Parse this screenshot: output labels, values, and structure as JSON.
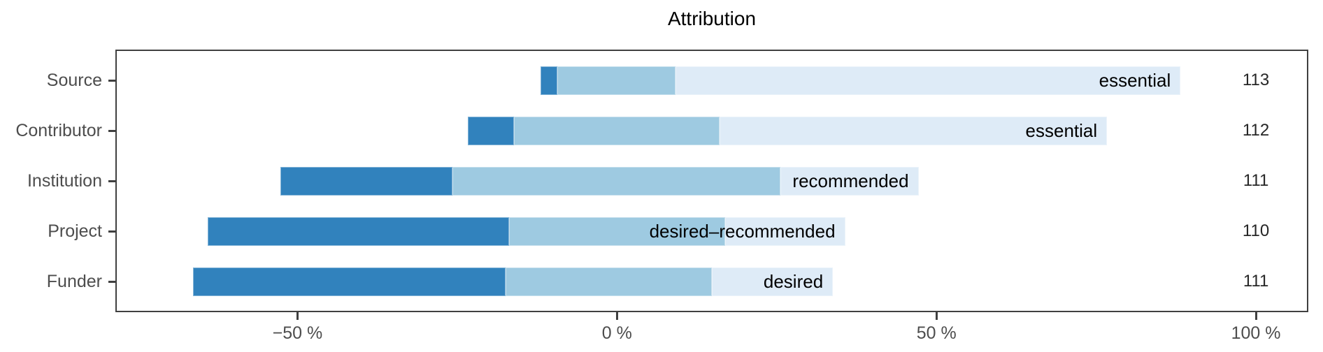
{
  "chart_data": {
    "type": "bar",
    "variant": "diverging-stacked-likert",
    "title": "Attribution",
    "x_axis": {
      "unit": "percent",
      "range": [
        -78.5,
        108.2
      ],
      "ticks": [
        {
          "value": -50,
          "label": "−50 %"
        },
        {
          "value": 0,
          "label": "0 %"
        },
        {
          "value": 50,
          "label": "50 %"
        },
        {
          "value": 100,
          "label": "100 %"
        }
      ]
    },
    "colors": {
      "low": "#3182bd",
      "mid": "#9ecae1",
      "high": "#deebf7",
      "axis": "#404040"
    },
    "count_column_position": 100,
    "rows": [
      {
        "category": "Source",
        "bar_label": "essential",
        "n": "113",
        "segments": [
          {
            "level": "low",
            "from": -12.0,
            "to": -9.3
          },
          {
            "level": "mid",
            "from": -9.3,
            "to": 9.2
          },
          {
            "level": "high",
            "from": 9.2,
            "to": 88.2
          }
        ]
      },
      {
        "category": "Contributor",
        "bar_label": "essential",
        "n": "112",
        "segments": [
          {
            "level": "low",
            "from": -23.3,
            "to": -16.1
          },
          {
            "level": "mid",
            "from": -16.1,
            "to": 16.1
          },
          {
            "level": "high",
            "from": 16.1,
            "to": 76.7
          }
        ]
      },
      {
        "category": "Institution",
        "bar_label": "recommended",
        "n": "111",
        "segments": [
          {
            "level": "low",
            "from": -52.7,
            "to": -25.7
          },
          {
            "level": "mid",
            "from": -25.7,
            "to": 25.6
          },
          {
            "level": "high",
            "from": 25.6,
            "to": 47.2
          }
        ]
      },
      {
        "category": "Project",
        "bar_label": "desired–recommended",
        "n": "110",
        "segments": [
          {
            "level": "low",
            "from": -64.1,
            "to": -16.9
          },
          {
            "level": "mid",
            "from": -16.9,
            "to": 16.9
          },
          {
            "level": "high",
            "from": 16.9,
            "to": 35.7
          }
        ]
      },
      {
        "category": "Funder",
        "bar_label": "desired",
        "n": "111",
        "segments": [
          {
            "level": "low",
            "from": -66.4,
            "to": -17.4
          },
          {
            "level": "mid",
            "from": -17.4,
            "to": 14.9
          },
          {
            "level": "high",
            "from": 14.9,
            "to": 33.8
          }
        ]
      }
    ]
  }
}
